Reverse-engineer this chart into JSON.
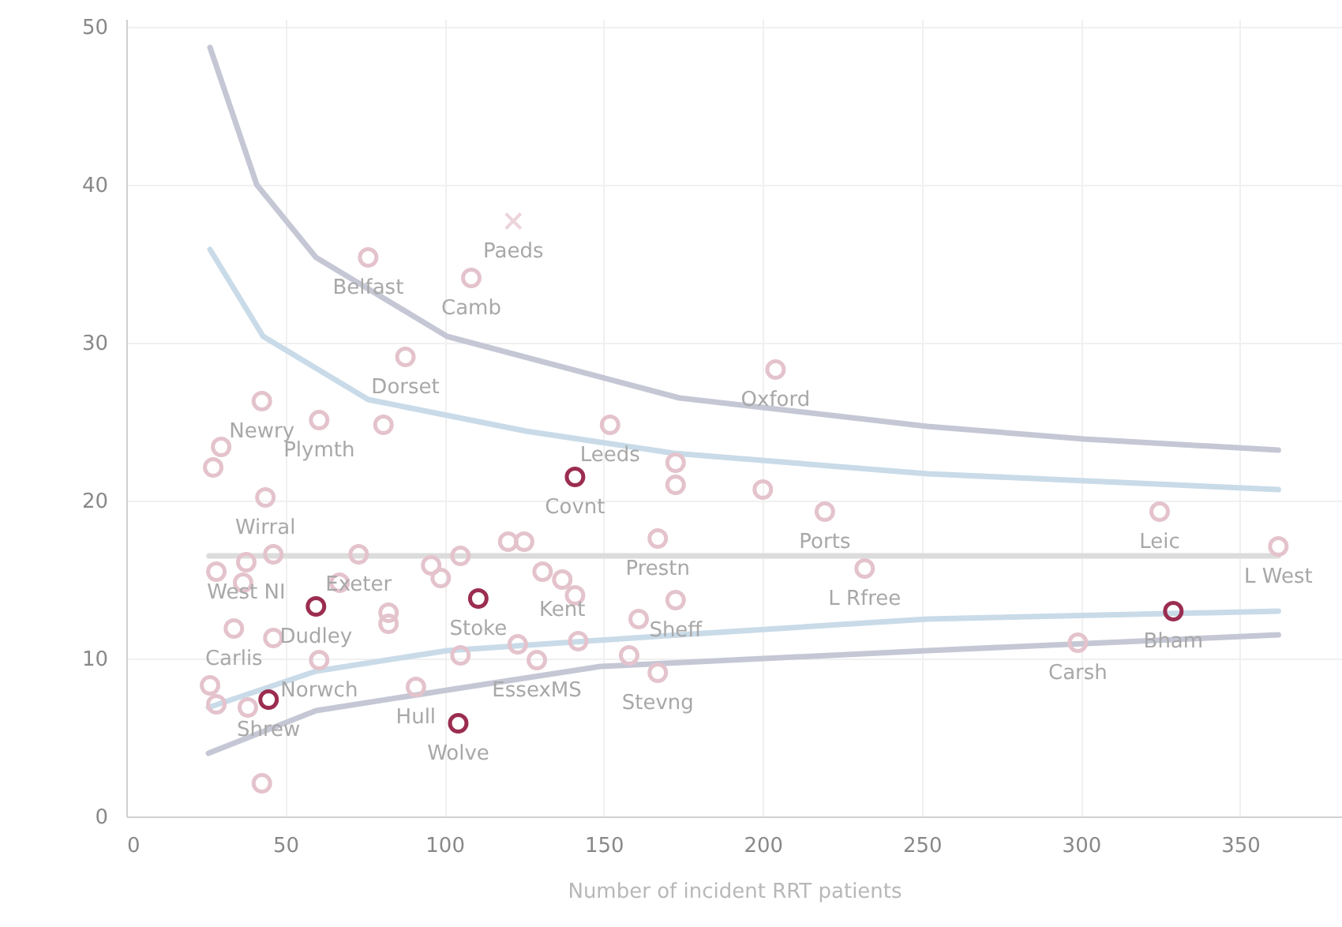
{
  "chart_data": {
    "type": "scatter",
    "xlabel": "Number of incident RRT patients",
    "xlim": [
      0,
      382
    ],
    "ylim": [
      0,
      50.5
    ],
    "xticks": [
      0,
      50,
      100,
      150,
      200,
      250,
      300,
      350
    ],
    "yticks": [
      0,
      10,
      20,
      30,
      40,
      50
    ],
    "grid": true,
    "series": [
      {
        "type": "line",
        "color": "#c5c7d5",
        "line_style": "solid",
        "x": [
          26.3,
          41,
          59.6,
          100.8,
          173.8,
          251.7,
          301,
          362
        ],
        "values": [
          48.7,
          40.0,
          35.4,
          30.4,
          26.5,
          24.7,
          23.9,
          23.2
        ]
      },
      {
        "type": "line",
        "color": "#c9dbe8",
        "line_style": "solid",
        "x": [
          26.3,
          43,
          76,
          125.6,
          172,
          251.7,
          362
        ],
        "values": [
          35.9,
          30.4,
          26.4,
          24.4,
          23.0,
          21.7,
          20.7
        ]
      },
      {
        "type": "line",
        "color": "#dcdcdc",
        "line_style": "solid",
        "x": [
          26,
          362
        ],
        "values": [
          16.5,
          16.5
        ]
      },
      {
        "type": "line",
        "color": "#c9dbe8",
        "line_style": "solid",
        "x": [
          25.8,
          59.6,
          100.8,
          173.8,
          251.7,
          362
        ],
        "values": [
          6.9,
          9.2,
          10.5,
          11.5,
          12.5,
          13.0
        ]
      },
      {
        "type": "line",
        "color": "#c5c7d5",
        "line_style": "solid",
        "x": [
          25.8,
          59.6,
          100.8,
          149,
          251.7,
          362
        ],
        "values": [
          4.0,
          6.7,
          8.0,
          9.5,
          10.5,
          11.5
        ]
      },
      {
        "marker": "circle",
        "color": "#e4c3cc",
        "x": [
          76,
          108.4,
          87.7,
          42.6,
          60.6,
          80.8,
          29.8,
          152,
          27.3,
          43.7,
          28.3,
          36.7,
          37.7,
          46.2,
          67,
          73,
          82.4,
          82.4,
          33.8,
          46.2,
          60.6,
          95.8,
          98.8,
          105,
          105,
          120,
          125,
          130.8,
          137,
          141,
          123,
          129,
          142,
          26.3,
          28.3,
          38.2,
          91,
          42.6,
          167,
          161,
          158,
          167,
          172.6,
          172.6,
          172.6,
          204,
          200,
          219.5,
          232,
          324.7,
          362,
          299
        ],
        "values": [
          35.4,
          34.1,
          29.1,
          26.3,
          25.1,
          24.8,
          23.4,
          24.8,
          22.1,
          20.2,
          15.5,
          14.8,
          16.1,
          16.6,
          14.8,
          16.6,
          12.9,
          12.2,
          11.9,
          11.3,
          9.9,
          15.9,
          15.1,
          16.5,
          10.2,
          17.4,
          17.4,
          15.5,
          15.0,
          14.0,
          10.9,
          9.9,
          11.1,
          8.3,
          7.1,
          6.9,
          8.2,
          2.1,
          17.6,
          12.5,
          10.2,
          9.1,
          13.7,
          22.4,
          21.0,
          28.3,
          20.7,
          19.3,
          15.7,
          19.3,
          17.1,
          11.0
        ]
      },
      {
        "marker": "circle",
        "color": "#9b2d50",
        "x": [
          141,
          59.6,
          110.6,
          44.7,
          104.3,
          329
        ],
        "values": [
          21.5,
          13.3,
          13.8,
          7.4,
          5.9,
          13.0
        ]
      },
      {
        "marker": "cross",
        "color": "#e4c3cc",
        "x": [
          121.6
        ],
        "values": [
          37.7
        ]
      }
    ],
    "annotations": [
      {
        "text": "Paeds",
        "x": 121.6,
        "y": 37.7
      },
      {
        "text": "Belfast",
        "x": 76,
        "y": 35.4
      },
      {
        "text": "Camb",
        "x": 108.4,
        "y": 34.1
      },
      {
        "text": "Dorset",
        "x": 87.7,
        "y": 29.1
      },
      {
        "text": "Newry",
        "x": 42.6,
        "y": 26.3
      },
      {
        "text": "Plymth",
        "x": 60.6,
        "y": 25.1
      },
      {
        "text": "Leeds",
        "x": 152,
        "y": 24.8
      },
      {
        "text": "Oxford",
        "x": 204,
        "y": 28.3
      },
      {
        "text": "Wirral",
        "x": 43.7,
        "y": 20.2
      },
      {
        "text": "West NI",
        "x": 37.7,
        "y": 16.1
      },
      {
        "text": "Exeter",
        "x": 73,
        "y": 16.6
      },
      {
        "text": "Covnt",
        "x": 141,
        "y": 21.5
      },
      {
        "text": "Kent",
        "x": 137,
        "y": 15.0
      },
      {
        "text": "Prestn",
        "x": 167,
        "y": 17.6
      },
      {
        "text": "Ports",
        "x": 219.5,
        "y": 19.3
      },
      {
        "text": "Leic",
        "x": 324.7,
        "y": 19.3
      },
      {
        "text": "L West",
        "x": 362,
        "y": 17.1
      },
      {
        "text": "Carlis",
        "x": 33.8,
        "y": 11.9
      },
      {
        "text": "Dudley",
        "x": 59.6,
        "y": 13.3
      },
      {
        "text": "Stoke",
        "x": 110.6,
        "y": 13.8
      },
      {
        "text": "Sheff",
        "x": 172.6,
        "y": 13.7
      },
      {
        "text": "L Rfree",
        "x": 232,
        "y": 15.7
      },
      {
        "text": "Bham",
        "x": 329,
        "y": 13.0
      },
      {
        "text": "Carsh",
        "x": 299,
        "y": 11.0
      },
      {
        "text": "Hull",
        "x": 91,
        "y": 8.2
      },
      {
        "text": "EssexMS",
        "x": 129,
        "y": 9.9
      },
      {
        "text": "Stevng",
        "x": 167,
        "y": 9.1
      },
      {
        "text": "Norwch",
        "x": 60.6,
        "y": 9.9
      },
      {
        "text": "Shrew",
        "x": 44.7,
        "y": 7.4
      },
      {
        "text": "Wolve",
        "x": 104.3,
        "y": 5.9
      }
    ]
  }
}
